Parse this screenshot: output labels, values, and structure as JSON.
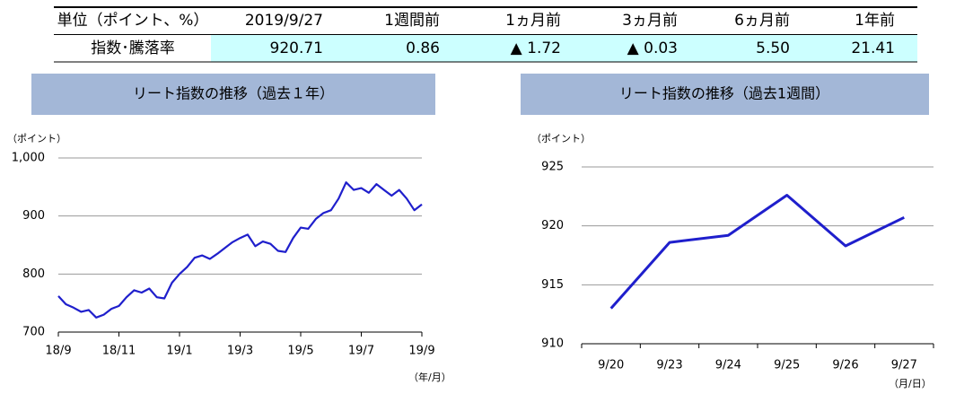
{
  "table": {
    "header": [
      "単位（ポイント、%）",
      "2019/9/27",
      "1週間前",
      "1ヵ月前",
      "3ヵ月前",
      "6ヵ月前",
      "1年前"
    ],
    "rows": [
      [
        "指数･騰落率",
        "920.71",
        "0.86",
        "▲ 1.72",
        "▲ 0.03",
        "5.50",
        "21.41"
      ]
    ]
  },
  "chart_data": [
    {
      "type": "line",
      "title": "リート指数の推移（過去１年）",
      "y_unit": "（ポイント）",
      "x_unit": "（年/月）",
      "categories": [
        "18/9",
        null,
        null,
        null,
        null,
        null,
        null,
        null,
        "18/11",
        null,
        null,
        null,
        null,
        null,
        null,
        null,
        "19/1",
        null,
        null,
        null,
        null,
        null,
        null,
        null,
        "19/3",
        null,
        null,
        null,
        null,
        null,
        null,
        null,
        "19/5",
        null,
        null,
        null,
        null,
        null,
        null,
        null,
        "19/7",
        null,
        null,
        null,
        null,
        null,
        null,
        null,
        "19/9"
      ],
      "series": [
        {
          "name": "リート指数",
          "color": "#1f1fcc",
          "values": [
            762,
            748,
            742,
            735,
            738,
            725,
            730,
            740,
            745,
            760,
            772,
            768,
            775,
            760,
            758,
            785,
            800,
            812,
            828,
            832,
            826,
            835,
            845,
            855,
            862,
            868,
            848,
            856,
            852,
            840,
            838,
            862,
            880,
            878,
            895,
            905,
            910,
            930,
            958,
            945,
            948,
            940,
            955,
            945,
            935,
            945,
            930,
            910,
            920
          ]
        }
      ],
      "ylim": [
        700,
        1000
      ],
      "yticks": [
        700,
        800,
        900,
        {
          "value": 1000,
          "label": "1,000"
        }
      ],
      "grid": true
    },
    {
      "type": "line",
      "title": "リート指数の推移（過去1週間）",
      "y_unit": "（ポイント）",
      "x_unit": "（月/日）",
      "categories": [
        "9/20",
        "9/23",
        "9/24",
        "9/25",
        "9/26",
        "9/27"
      ],
      "series": [
        {
          "name": "リート指数",
          "color": "#1f1fcc",
          "values": [
            913.0,
            918.6,
            919.2,
            922.6,
            918.3,
            920.71
          ]
        }
      ],
      "ylim": [
        910,
        925
      ],
      "yticks": [
        910,
        915,
        920,
        925
      ],
      "grid": true
    }
  ]
}
